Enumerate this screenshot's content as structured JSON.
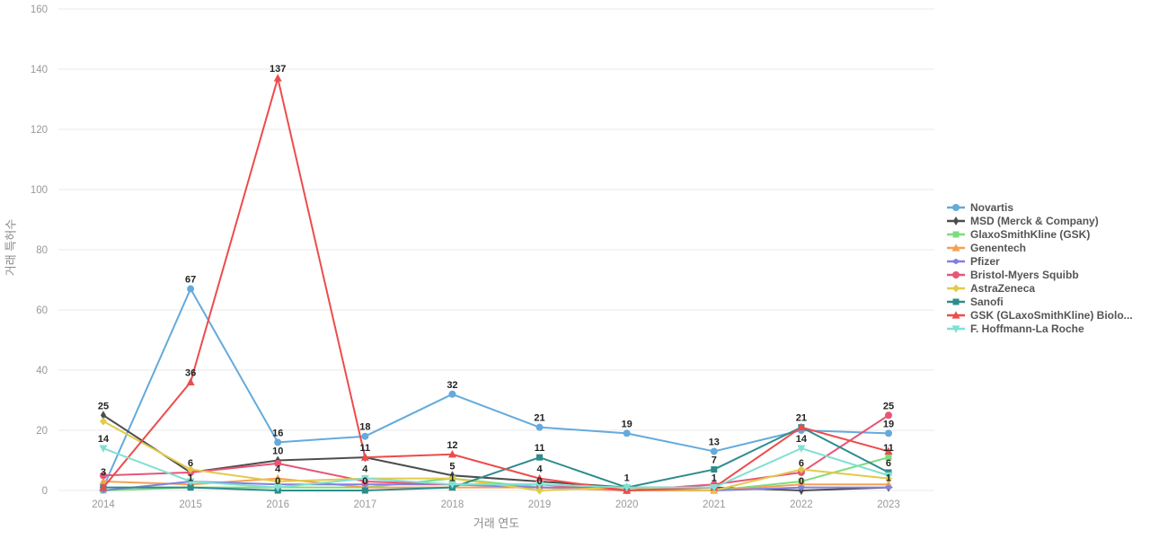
{
  "axes": {
    "x_title": "거래 연도",
    "y_title": "거래 특허수"
  },
  "chart_data": {
    "type": "line",
    "title": "",
    "xlabel": "거래 연도",
    "ylabel": "거래 특허수",
    "x": [
      2014,
      2015,
      2016,
      2017,
      2018,
      2019,
      2020,
      2021,
      2022,
      2023
    ],
    "ylim": [
      0,
      160
    ],
    "ytick_step": 20,
    "grid": true,
    "legend_position": "right",
    "colors": {
      "grid": "#e8e8e8",
      "tick_text": "#999999",
      "point_label": "#222222"
    },
    "series": [
      {
        "name": "Novartis",
        "color": "#64aadc",
        "marker": "circle",
        "values": [
          1,
          67,
          16,
          18,
          32,
          21,
          19,
          13,
          20,
          19
        ],
        "point_labels": {
          "2015": 67,
          "2016": 16,
          "2017": 18,
          "2018": 32,
          "2019": 21,
          "2020": 19,
          "2021": 13,
          "2023": 19
        }
      },
      {
        "name": "MSD (Merck & Company)",
        "color": "#4d4d4d",
        "marker": "diamond-thin",
        "values": [
          25,
          6,
          10,
          11,
          5,
          3,
          1,
          1,
          0,
          1
        ],
        "point_labels": {
          "2014": 25,
          "2015": 6,
          "2016": 10,
          "2018": 5,
          "2022": 0
        }
      },
      {
        "name": "GlaxoSmithKline (GSK)",
        "color": "#7edc7e",
        "marker": "square",
        "values": [
          0,
          1,
          1,
          1,
          4,
          1,
          0,
          0,
          3,
          11
        ],
        "point_labels": {
          "2023": 11
        }
      },
      {
        "name": "Genentech",
        "color": "#f5a054",
        "marker": "triangle-up",
        "values": [
          3,
          2,
          4,
          1,
          1,
          1,
          0,
          0,
          2,
          2
        ],
        "point_labels": {
          "2014": 3,
          "2016": 4
        }
      },
      {
        "name": "Pfizer",
        "color": "#8181e0",
        "marker": "diamond-wide",
        "values": [
          0,
          3,
          2,
          2,
          2,
          1,
          1,
          0,
          1,
          1
        ],
        "point_labels": {
          "2020": 1,
          "2023": 1
        }
      },
      {
        "name": "Bristol-Myers Squibb",
        "color": "#e85578",
        "marker": "circle",
        "values": [
          5,
          6,
          9,
          3,
          2,
          2,
          0,
          2,
          6,
          25
        ],
        "point_labels": {
          "2022": 6,
          "2023": 25
        }
      },
      {
        "name": "AstraZeneca",
        "color": "#e2ca4a",
        "marker": "diamond",
        "values": [
          23,
          7,
          3,
          4,
          4,
          0,
          1,
          0,
          7,
          4
        ],
        "point_labels": {
          "2019": 0
        }
      },
      {
        "name": "Sanofi",
        "color": "#2e8c8c",
        "marker": "square",
        "values": [
          1,
          1,
          0,
          0,
          1,
          11,
          1,
          7,
          21,
          6
        ],
        "point_labels": {
          "2015": 1,
          "2016": 0,
          "2017": 0,
          "2018": 1,
          "2019": 11,
          "2021": 7,
          "2023": 6
        }
      },
      {
        "name": "GSK (GLaxoSmithKline) Biolo...",
        "color": "#ec4c4c",
        "marker": "triangle-up",
        "values": [
          1,
          36,
          137,
          11,
          12,
          4,
          0,
          1,
          21,
          13
        ],
        "point_labels": {
          "2015": 36,
          "2016": 137,
          "2017": 11,
          "2018": 12,
          "2019": 4,
          "2021": 1,
          "2022": 21
        }
      },
      {
        "name": "F. Hoffmann-La Roche",
        "color": "#80e0d2",
        "marker": "triangle-down",
        "values": [
          14,
          3,
          1,
          4,
          2,
          2,
          1,
          1,
          14,
          5
        ],
        "point_labels": {
          "2014": 14,
          "2017": 4,
          "2022": 14
        }
      }
    ]
  }
}
